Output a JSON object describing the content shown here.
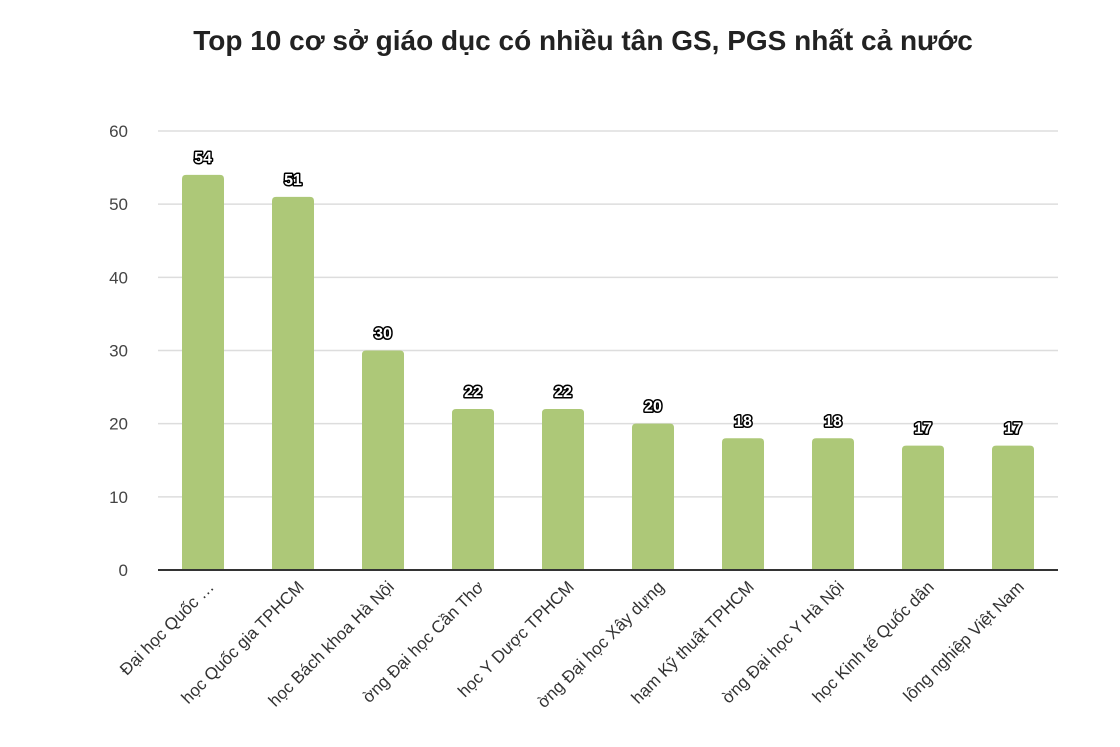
{
  "chart_data": {
    "type": "bar",
    "title": "Top 10 cơ sở giáo dục có nhiều tân GS, PGS nhất cả nước",
    "categories": [
      "Đại học Quốc …",
      "học Quốc gia TPHCM",
      "học Bách khoa Hà Nội",
      "ờng Đại học Cần Thơ",
      "học Y Dược TPHCM",
      "ờng Đại học Xây dựng",
      "hạm Kỹ thuật TPHCM",
      "ờng Đại học Y Hà Nội",
      "học Kinh tế Quốc dân",
      "lông nghiệp Việt Nam"
    ],
    "values": [
      54,
      51,
      30,
      22,
      22,
      20,
      18,
      18,
      17,
      17
    ],
    "ylim": [
      0,
      60
    ],
    "yticks": [
      0,
      10,
      20,
      30,
      40,
      50,
      60
    ],
    "xlabel": "",
    "ylabel": "",
    "grid": true,
    "legend": "none",
    "bar_color": "#adc878"
  }
}
